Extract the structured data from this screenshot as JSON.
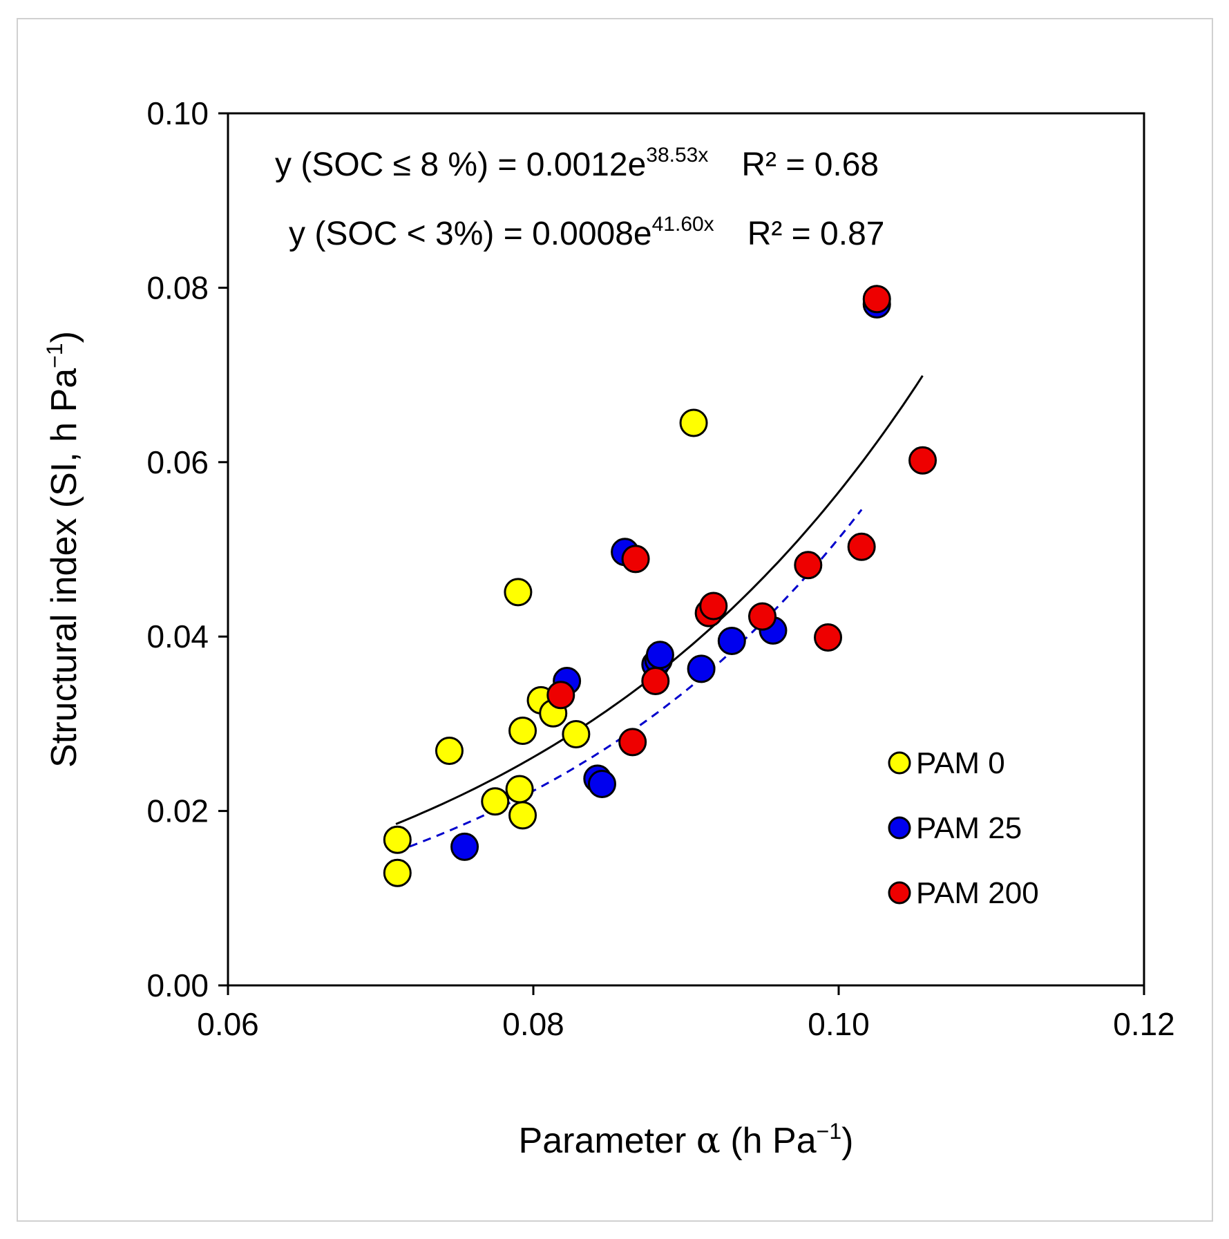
{
  "chart_data": {
    "type": "scatter",
    "xlabel_prefix": "Parameter ",
    "xlabel_symbol": "α",
    "xlabel_unit": " (h Pa",
    "xlabel_exp": "−1",
    "xlabel_close": ")",
    "ylabel_main": "Structural index (SI, h Pa",
    "ylabel_exp": "−1",
    "ylabel_close": ")",
    "xlim": [
      0.06,
      0.12
    ],
    "ylim": [
      0.0,
      0.1
    ],
    "xticks": [
      "0.06",
      "0.08",
      "0.10",
      "0.12"
    ],
    "yticks": [
      "0.00",
      "0.02",
      "0.04",
      "0.06",
      "0.08",
      "0.10"
    ],
    "series": [
      {
        "name": "PAM 0",
        "color": "#ffff00",
        "points": [
          [
            0.0711,
            0.0167
          ],
          [
            0.0711,
            0.0129
          ],
          [
            0.0745,
            0.0269
          ],
          [
            0.0775,
            0.0211
          ],
          [
            0.079,
            0.0451
          ],
          [
            0.0791,
            0.0225
          ],
          [
            0.0793,
            0.0292
          ],
          [
            0.0793,
            0.0195
          ],
          [
            0.0805,
            0.0327
          ],
          [
            0.0813,
            0.0312
          ],
          [
            0.0828,
            0.0288
          ],
          [
            0.0905,
            0.0645
          ]
        ]
      },
      {
        "name": "PAM 25",
        "color": "#0000ee",
        "points": [
          [
            0.0755,
            0.0159
          ],
          [
            0.0822,
            0.0349
          ],
          [
            0.0842,
            0.0237
          ],
          [
            0.0845,
            0.0231
          ],
          [
            0.086,
            0.0497
          ],
          [
            0.088,
            0.0368
          ],
          [
            0.0882,
            0.0373
          ],
          [
            0.0883,
            0.0379
          ],
          [
            0.091,
            0.0363
          ],
          [
            0.093,
            0.0395
          ],
          [
            0.0957,
            0.0407
          ],
          [
            0.1025,
            0.0781
          ]
        ]
      },
      {
        "name": "PAM 200",
        "color": "#ee0000",
        "points": [
          [
            0.0818,
            0.0333
          ],
          [
            0.0865,
            0.0279
          ],
          [
            0.0867,
            0.0489
          ],
          [
            0.088,
            0.0349
          ],
          [
            0.0915,
            0.0427
          ],
          [
            0.0918,
            0.0435
          ],
          [
            0.095,
            0.0423
          ],
          [
            0.098,
            0.0482
          ],
          [
            0.0993,
            0.0399
          ],
          [
            0.1015,
            0.0503
          ],
          [
            0.1025,
            0.0787
          ],
          [
            0.1055,
            0.0602
          ]
        ]
      }
    ],
    "fits": [
      {
        "label": "SOC ≤ 8 %",
        "eq_prefix": "y (SOC ≤ 8 %) = 0.0012e",
        "eq_exp": "38.53x",
        "r2": "R² = 0.68",
        "a": 0.0012,
        "b": 38.53,
        "x_range": [
          0.071,
          0.1055
        ],
        "style": "solid",
        "color": "#000000"
      },
      {
        "label": "SOC < 3%",
        "eq_prefix": "y (SOC < 3%) = 0.0008e",
        "eq_exp": "41.60x",
        "r2": "R² = 0.87",
        "a": 0.0008,
        "b": 41.6,
        "x_range": [
          0.071,
          0.1015
        ],
        "style": "dashed",
        "color": "#0000cc"
      }
    ],
    "legend": {
      "placement": "bottom-right",
      "entries": [
        "PAM 0",
        "PAM 25",
        "PAM 200"
      ]
    }
  }
}
